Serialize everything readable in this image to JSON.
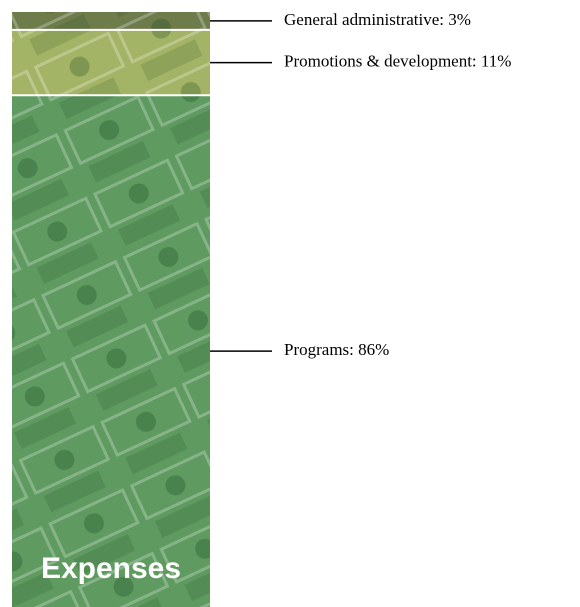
{
  "chart_data": {
    "type": "bar",
    "title": "Expenses",
    "values": [
      3,
      11,
      86
    ],
    "value_labels": [
      "General administrative: 3%",
      "Promotions & development: 11%",
      "Programs: 86%"
    ],
    "colors": [
      "#6e7c4c",
      "#a4b466",
      "#5f9a60"
    ]
  }
}
